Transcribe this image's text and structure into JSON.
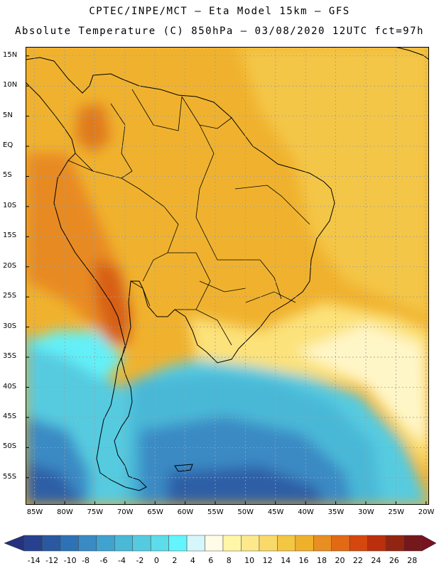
{
  "header": {
    "line1": "CPTEC/INPE/MCT –  Eta Model 15km – GFS",
    "line2": "Absolute Temperature (C) 850hPa – 03/08/2020 12UTC fct=97h"
  },
  "map": {
    "lat_labels": [
      "15N",
      "10N",
      "5N",
      "EQ",
      "5S",
      "10S",
      "15S",
      "20S",
      "25S",
      "30S",
      "35S",
      "40S",
      "45S",
      "50S",
      "55S"
    ],
    "lat_values": [
      15,
      10,
      5,
      0,
      -5,
      -10,
      -15,
      -20,
      -25,
      -30,
      -35,
      -40,
      -45,
      -50,
      -55
    ],
    "lon_labels": [
      "85W",
      "80W",
      "75W",
      "70W",
      "65W",
      "60W",
      "55W",
      "50W",
      "45W",
      "40W",
      "35W",
      "30W",
      "25W",
      "20W"
    ],
    "lon_values": [
      -85,
      -80,
      -75,
      -70,
      -65,
      -60,
      -55,
      -50,
      -45,
      -40,
      -35,
      -30,
      -25,
      -20
    ]
  },
  "colorbar": {
    "labels": [
      "-14",
      "-12",
      "-10",
      "-8",
      "-6",
      "-4",
      "-2",
      "0",
      "2",
      "4",
      "6",
      "8",
      "10",
      "12",
      "14",
      "16",
      "18",
      "20",
      "22",
      "24",
      "26",
      "28"
    ],
    "colors": [
      "#27418f",
      "#2a59a1",
      "#2d72b4",
      "#3a8ac4",
      "#40a2cf",
      "#4ab8d7",
      "#56cbe0",
      "#5ddcea",
      "#64f4fb",
      "#d5f6fb",
      "#fffbe6",
      "#fff6a8",
      "#fde98b",
      "#f9d96a",
      "#f3c644",
      "#efb12b",
      "#e88e22",
      "#e26a15",
      "#d4480f",
      "#bb2f0c",
      "#922512",
      "#74181b"
    ],
    "under_color": "#24317e",
    "over_color": "#7a1020"
  },
  "palette": {
    "warm": "#f0b22e",
    "hot": "#e88a22",
    "very_hot": "#d75e16",
    "cool_yellow": "#fce27a",
    "pale": "#fff6c8",
    "cyan": "#64f0f8",
    "light_blue": "#4ab8d7",
    "mid_blue": "#3a8ac4",
    "deep_blue": "#2d5ea6"
  }
}
